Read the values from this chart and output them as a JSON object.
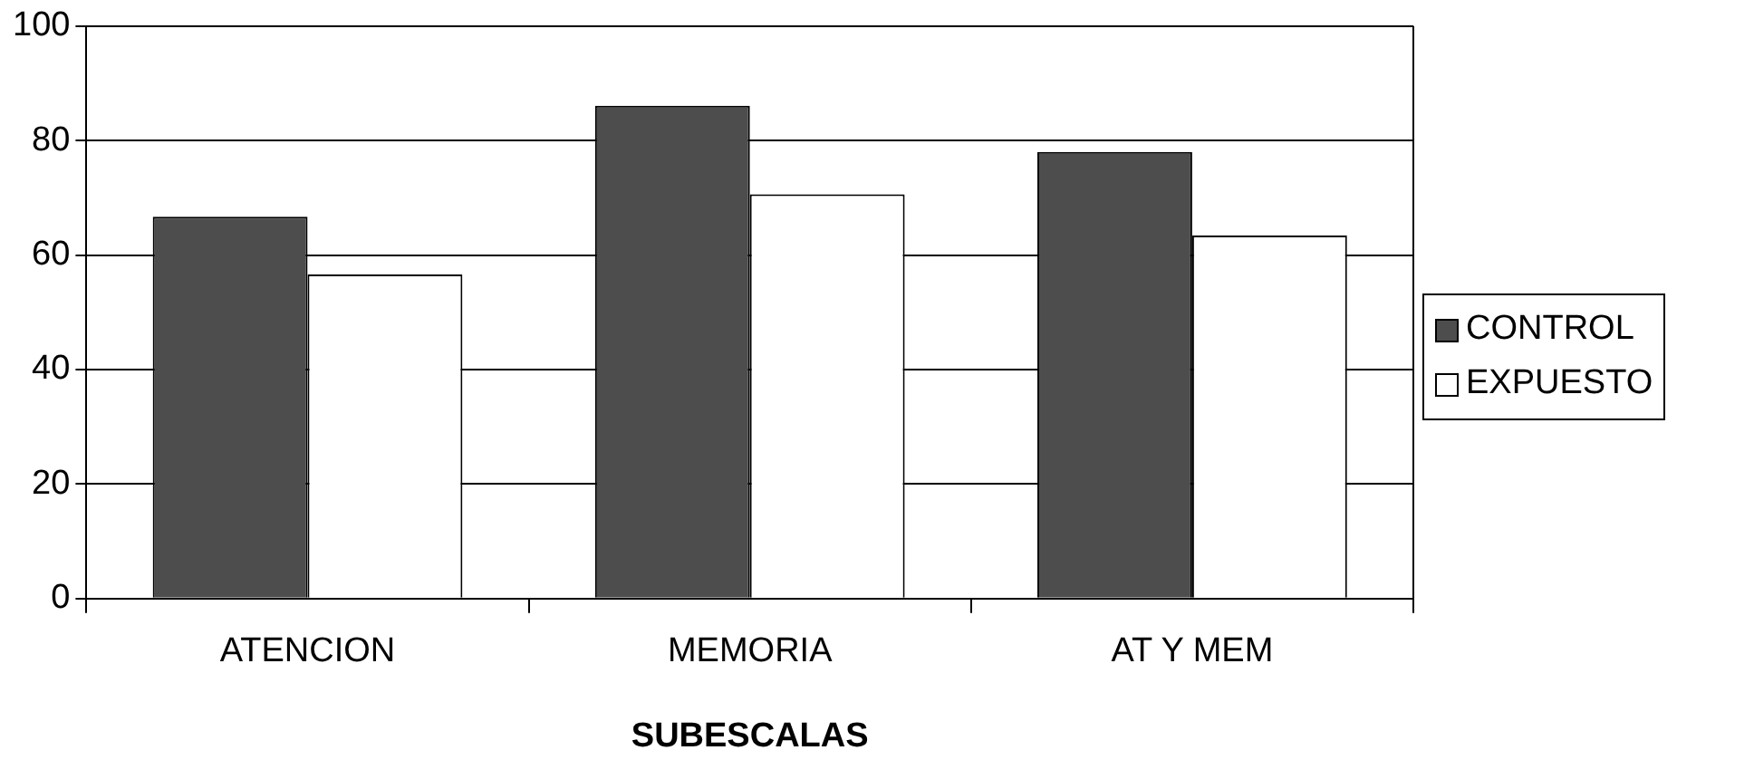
{
  "chart_data": {
    "type": "bar",
    "xlabel": "SUBESCALAS",
    "categories": [
      "ATENCION",
      "MEMORIA",
      "AT Y MEM"
    ],
    "series": [
      {
        "name": "CONTROL",
        "color": "#4d4d4d",
        "values": [
          66.7,
          86.1,
          78.0
        ]
      },
      {
        "name": "EXPUESTO",
        "color": "#ffffff",
        "values": [
          56.6,
          70.6,
          63.4
        ]
      }
    ],
    "ylim": [
      0,
      100
    ],
    "yticks": [
      0,
      20,
      40,
      60,
      80,
      100
    ],
    "grid": "y",
    "legend": "right"
  }
}
